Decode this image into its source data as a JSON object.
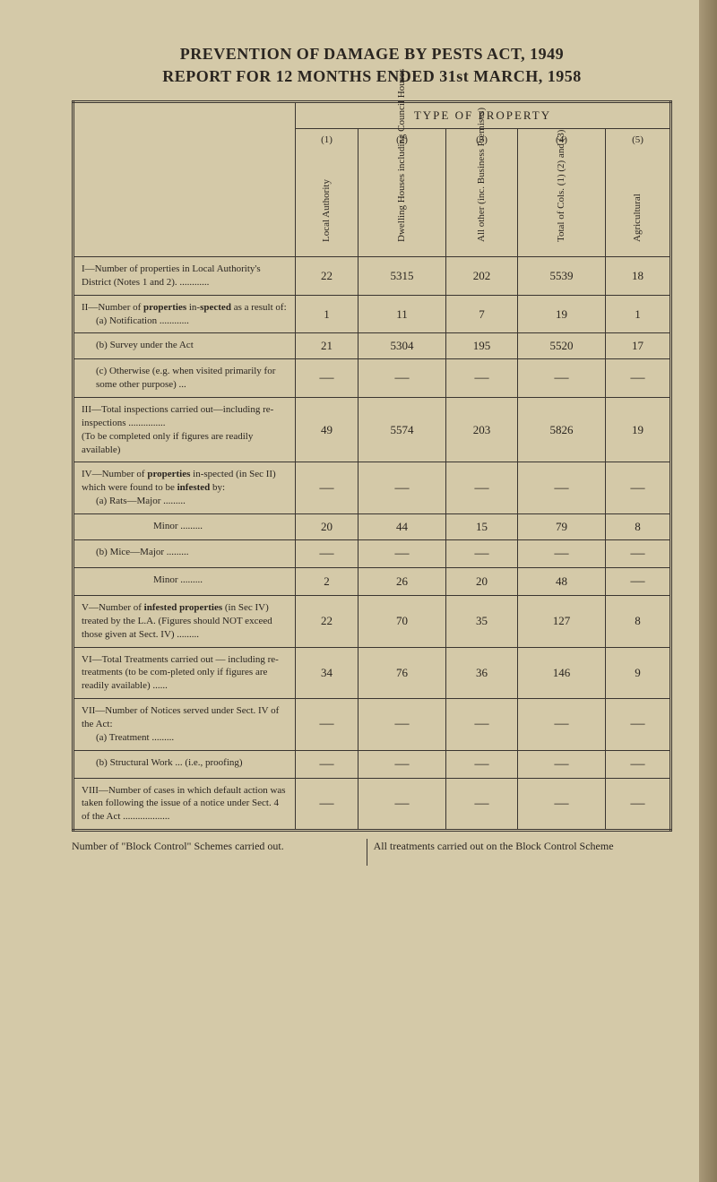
{
  "title_line1": "PREVENTION OF DAMAGE BY PESTS ACT, 1949",
  "title_line2": "REPORT FOR 12 MONTHS ENDED 31st MARCH, 1958",
  "table": {
    "super_header": "TYPE OF PROPERTY",
    "columns": [
      {
        "num": "(1)",
        "label": "Local Authority"
      },
      {
        "num": "(2)",
        "label": "Dwelling Houses\nincluding\nCouncil Houses"
      },
      {
        "num": "(3)",
        "label": "All other (inc.\nBusiness\nPremises)"
      },
      {
        "num": "(4)",
        "label": "Total of Cols. (1)\n(2) and (3)"
      },
      {
        "num": "(5)",
        "label": "Agricultural"
      }
    ],
    "rows": [
      {
        "label": "I—Number of properties in Local Authority's District (Notes 1 and 2). ............",
        "cells": [
          "22",
          "5315",
          "202",
          "5539",
          "18"
        ]
      },
      {
        "label": "II—Number of <b>properties</b> in-<b>spected</b> as a result of:<br><span class=\"sub-item\">(a) Notification ............</span>",
        "cells": [
          "1",
          "11",
          "7",
          "19",
          "1"
        ]
      },
      {
        "label": "<span class=\"sub-item\">(b) Survey under the Act</span>",
        "cells": [
          "21",
          "5304",
          "195",
          "5520",
          "17"
        ]
      },
      {
        "label": "<span class=\"sub-item\">(c) Otherwise (e.g. when visited primarily for some other purpose) ...</span>",
        "cells": [
          "—",
          "—",
          "—",
          "—",
          "—"
        ]
      },
      {
        "label": "III—Total inspections carried out—including re-inspections ...............<br>(To be completed only if figures are readily available)",
        "cells": [
          "49",
          "5574",
          "203",
          "5826",
          "19"
        ]
      },
      {
        "label": "IV—Number of <b>properties</b> in-spected (in Sec II) which were found to be <b>infested</b> by:<br><span class=\"sub-item\">(a) Rats—Major .........</span>",
        "cells": [
          "—",
          "—",
          "—",
          "—",
          "—"
        ]
      },
      {
        "label": "<span class=\"sub-item\" style=\"padding-left:80px\">Minor .........</span>",
        "cells": [
          "20",
          "44",
          "15",
          "79",
          "8"
        ]
      },
      {
        "label": "<span class=\"sub-item\">(b) Mice—Major .........</span>",
        "cells": [
          "—",
          "—",
          "—",
          "—",
          "—"
        ]
      },
      {
        "label": "<span class=\"sub-item\" style=\"padding-left:80px\">Minor .........</span>",
        "cells": [
          "2",
          "26",
          "20",
          "48",
          "—"
        ]
      },
      {
        "label": "V—Number of <b>infested properties</b> (in Sec IV) treated by the L.A. (Figures should NOT exceed those given at Sect. IV) .........",
        "cells": [
          "22",
          "70",
          "35",
          "127",
          "8"
        ]
      },
      {
        "label": "VI—Total Treatments carried out — including re-treatments (to be com-pleted only if figures are readily available) ......",
        "cells": [
          "34",
          "76",
          "36",
          "146",
          "9"
        ]
      },
      {
        "label": "VII—Number of Notices served under Sect. IV of the Act:<br><span class=\"sub-item\">(a) Treatment .........</span>",
        "cells": [
          "—",
          "—",
          "—",
          "—",
          "—"
        ]
      },
      {
        "label": "<span class=\"sub-item\">(b) Structural Work ... (i.e., proofing)</span>",
        "cells": [
          "—",
          "—",
          "—",
          "—",
          "—"
        ]
      },
      {
        "label": "VIII—Number of cases in which default action was taken following the issue of a notice under Sect. 4 of the Act ...................",
        "cells": [
          "—",
          "—",
          "—",
          "—",
          "—"
        ]
      }
    ]
  },
  "footnote_left": "Number of \"Block Control\" Schemes carried out.",
  "footnote_right": "All treatments carried out on the Block Control Scheme",
  "styling": {
    "page_bg": "#d4c9a8",
    "outer_bg": "#c4b896",
    "text_color": "#2a2520",
    "border_color": "#3a3530",
    "title_fontsize": 18,
    "body_fontsize": 12,
    "col_widths": [
      "230px",
      "70px",
      "90px",
      "80px",
      "90px",
      "70px"
    ]
  }
}
